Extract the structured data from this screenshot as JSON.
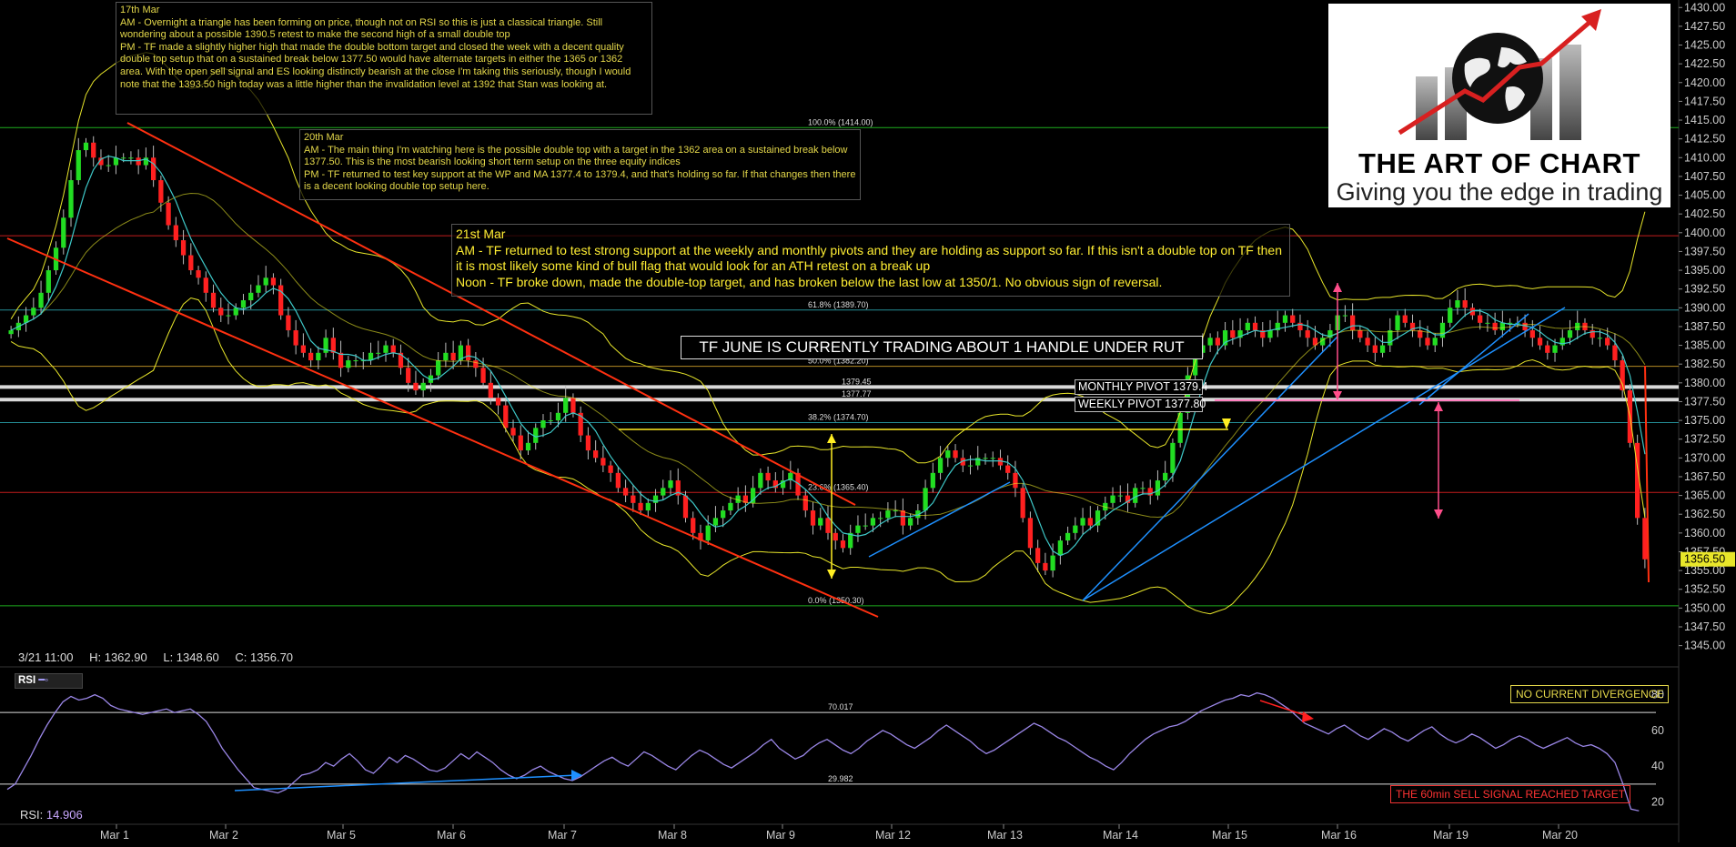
{
  "chart_data": [
    {
      "type": "candlestick",
      "instrument_note": "TF JUNE IS CURRENTLY TRADING ABOUT 1 HANDLE UNDER RUT",
      "x_categories": [
        "Mar 1",
        "Mar 2",
        "Mar 5",
        "Mar 6",
        "Mar 7",
        "Mar 8",
        "Mar 9",
        "Mar 12",
        "Mar 13",
        "Mar 14",
        "Mar 15",
        "Mar 16",
        "Mar 19",
        "Mar 20"
      ],
      "y_ticks": [
        "1430.00",
        "1427.50",
        "1425.00",
        "1422.50",
        "1420.00",
        "1417.50",
        "1415.00",
        "1412.50",
        "1410.00",
        "1407.50",
        "1405.00",
        "1402.50",
        "1400.00",
        "1397.50",
        "1395.00",
        "1392.50",
        "1390.00",
        "1387.50",
        "1385.00",
        "1382.50",
        "1380.00",
        "1377.50",
        "1375.00",
        "1372.50",
        "1370.00",
        "1367.50",
        "1365.00",
        "1362.50",
        "1360.00",
        "1357.50",
        "1355.00",
        "1352.50",
        "1350.00",
        "1347.50",
        "1345.00"
      ],
      "ylim": [
        1343.5,
        1431
      ],
      "last_price": "1356.50",
      "ohlc_readout": {
        "date": "3/21 11:00",
        "high": "H: 1362.90",
        "low": "L: 1348.60",
        "close": "C: 1356.70"
      },
      "closes": [
        1387,
        1388,
        1389,
        1390,
        1392,
        1395,
        1398,
        1402,
        1407,
        1411,
        1412,
        1410,
        1409,
        1409,
        1410,
        1410,
        1410,
        1409,
        1410,
        1407,
        1404,
        1401,
        1399,
        1397,
        1395,
        1394,
        1392,
        1390,
        1389,
        1389,
        1390,
        1391,
        1392,
        1393,
        1394,
        1393,
        1389,
        1387,
        1385,
        1384,
        1383,
        1384,
        1386,
        1384,
        1382,
        1383,
        1383,
        1383,
        1384,
        1384,
        1385,
        1384,
        1382,
        1380,
        1379,
        1380,
        1381,
        1383,
        1384,
        1383,
        1385,
        1383,
        1382,
        1380,
        1378,
        1377,
        1374,
        1373,
        1371,
        1372,
        1374,
        1375,
        1375,
        1376,
        1378,
        1376,
        1373,
        1371,
        1370,
        1369,
        1368,
        1366,
        1365,
        1364,
        1363,
        1364,
        1365,
        1366,
        1367,
        1365,
        1362,
        1360,
        1359,
        1361,
        1362,
        1363,
        1364,
        1365,
        1364,
        1366,
        1368,
        1367,
        1366,
        1367,
        1368,
        1365,
        1363,
        1361,
        1362,
        1360,
        1359,
        1358,
        1360,
        1361,
        1361,
        1362,
        1362,
        1363,
        1363,
        1361,
        1362,
        1363,
        1366,
        1368,
        1370,
        1371,
        1370,
        1369,
        1369,
        1370,
        1370,
        1370,
        1369,
        1368,
        1366,
        1362,
        1358,
        1356,
        1355,
        1357,
        1359,
        1360,
        1361,
        1362,
        1361,
        1363,
        1364,
        1365,
        1365,
        1364,
        1366,
        1366,
        1365,
        1367,
        1368,
        1372,
        1376,
        1381,
        1384,
        1385,
        1386,
        1385,
        1387,
        1386,
        1387,
        1388,
        1387,
        1386,
        1387,
        1388,
        1389,
        1388,
        1387,
        1386,
        1385,
        1386,
        1387,
        1389,
        1389,
        1387,
        1386,
        1385,
        1384,
        1385,
        1387,
        1389,
        1388,
        1387,
        1386,
        1385,
        1386,
        1388,
        1390,
        1391,
        1390,
        1389,
        1388,
        1388,
        1387,
        1388,
        1388,
        1388,
        1387,
        1386,
        1385,
        1384,
        1385,
        1386,
        1387,
        1388,
        1387,
        1386,
        1386,
        1385,
        1383,
        1379,
        1372,
        1362,
        1356.5
      ],
      "horizontal_levels": [
        {
          "price": 1414.0,
          "color": "#22c022",
          "label": "100.0% (1414.00)"
        },
        {
          "price": 1399.6,
          "color": "#d82020",
          "label": ""
        },
        {
          "price": 1389.7,
          "color": "#2a9ea8",
          "label": "61.8% (1389.70)"
        },
        {
          "price": 1382.2,
          "color": "#c99a2a",
          "label": "50.0% (1382.20)"
        },
        {
          "price": 1379.45,
          "color": "#ffffff",
          "label": "1379.45"
        },
        {
          "price": 1377.77,
          "color": "#ffffff",
          "label": "1377.77"
        },
        {
          "price": 1374.7,
          "color": "#2a9ea8",
          "label": "38.2% (1374.70)"
        },
        {
          "price": 1365.4,
          "color": "#d82020",
          "label": "23.6% (1365.40)"
        },
        {
          "price": 1350.3,
          "color": "#22c022",
          "label": "0.0% (1350.30)"
        }
      ],
      "pivots": [
        {
          "label": "MONTHLY PIVOT 1379.4",
          "price": 1379.4
        },
        {
          "label": "WEEKLY PIVOT 1377.80",
          "price": 1377.8
        }
      ]
    },
    {
      "type": "line",
      "indicator": "RSI",
      "readout_label": "RSI:",
      "readout_value": "14.906",
      "y_ticks": [
        "80",
        "60",
        "40",
        "20"
      ],
      "ylim": [
        8,
        92
      ],
      "levels": [
        {
          "value": 70.017,
          "label": "70.017"
        },
        {
          "value": 29.982,
          "label": "29.982"
        }
      ],
      "values": [
        27,
        30,
        38,
        46,
        55,
        63,
        70,
        76,
        79,
        77,
        78,
        80,
        78,
        74,
        72,
        71,
        70,
        69,
        70,
        71,
        72,
        70,
        71,
        72,
        69,
        65,
        58,
        50,
        44,
        38,
        33,
        28,
        27,
        26,
        25,
        27,
        31,
        35,
        36,
        38,
        42,
        40,
        44,
        47,
        43,
        38,
        36,
        40,
        45,
        42,
        46,
        44,
        41,
        38,
        37,
        39,
        43,
        47,
        44,
        48,
        45,
        42,
        38,
        35,
        33,
        35,
        38,
        40,
        37,
        35,
        33,
        32,
        34,
        37,
        40,
        43,
        45,
        42,
        40,
        44,
        48,
        46,
        43,
        40,
        38,
        42,
        46,
        49,
        47,
        44,
        41,
        39,
        42,
        45,
        48,
        52,
        55,
        50,
        47,
        44,
        46,
        50,
        53,
        55,
        52,
        49,
        47,
        50,
        54,
        57,
        60,
        58,
        55,
        52,
        50,
        53,
        56,
        60,
        63,
        60,
        57,
        54,
        50,
        47,
        49,
        52,
        55,
        58,
        61,
        64,
        62,
        59,
        56,
        54,
        51,
        48,
        45,
        43,
        40,
        38,
        42,
        47,
        51,
        55,
        58,
        60,
        62,
        63,
        65,
        68,
        71,
        73,
        75,
        77,
        78,
        80,
        79,
        81,
        80,
        78,
        75,
        72,
        68,
        64,
        62,
        60,
        58,
        61,
        63,
        60,
        57,
        55,
        58,
        61,
        59,
        56,
        54,
        57,
        60,
        62,
        58,
        55,
        53,
        55,
        58,
        56,
        53,
        50,
        52,
        55,
        57,
        55,
        52,
        50,
        52,
        54,
        56,
        53,
        51,
        52,
        50,
        47,
        42,
        30,
        16,
        15
      ],
      "annotations": [
        "NO CURRENT DIVERGENCE",
        "THE 60min SELL SIGNAL REACHED TARGET"
      ]
    }
  ],
  "notes": [
    {
      "id": "mar17",
      "lines": [
        "17th Mar",
        "AM - Overnight a triangle has been forming on price, though not on RSI so this is just a classical triangle. Still wondering about a possible 1390.5 retest to make the second high of a small double top",
        "PM - TF made a slightly higher high that made the double bottom target and closed the week with a decent quality double top setup that on a sustained break below 1377.50 would have alternate targets in either the 1365 or 1362 area. With the open sell signal and ES looking distinctly bearish at the close I'm taking this seriously, though I would note that the 1393.50 high today was a little higher than the invalidation level at 1392 that Stan was looking at."
      ]
    },
    {
      "id": "mar20",
      "lines": [
        "20th Mar",
        "AM - The main thing I'm watching here is the possible double top with a target in the 1362 area on a sustained break below 1377.50. This is the most bearish looking short term setup on the three equity indices",
        "PM - TF returned to test key support at the WP and MA 1377.4 to 1379.4, and that's holding so far. If that changes then there is a decent looking double top setup here."
      ]
    },
    {
      "id": "mar21",
      "lines": [
        "21st Mar",
        "AM - TF returned to test strong support at the weekly and monthly pivots and they are holding as support so far. If this isn't a double top on TF then it is most likely some kind of bull flag that would look for an ATH retest on a break up",
        "Noon - TF broke down, made the double-top target, and has broken below the last low at 1350/1. No obvious sign of reversal."
      ]
    }
  ],
  "logo": {
    "title": "THE ART OF CHART",
    "tagline": "Giving you the edge in trading"
  },
  "colors": {
    "background": "#000000",
    "channel": "#ff3010",
    "trendline": "#1e90ff",
    "bollinger": "#e8e62a",
    "ma_fast": "#3ec8c8",
    "candle_up": "#22dd22",
    "candle_down": "#ff2020",
    "rsi_line": "#9a86e6",
    "axis_text": "#cccccc"
  }
}
